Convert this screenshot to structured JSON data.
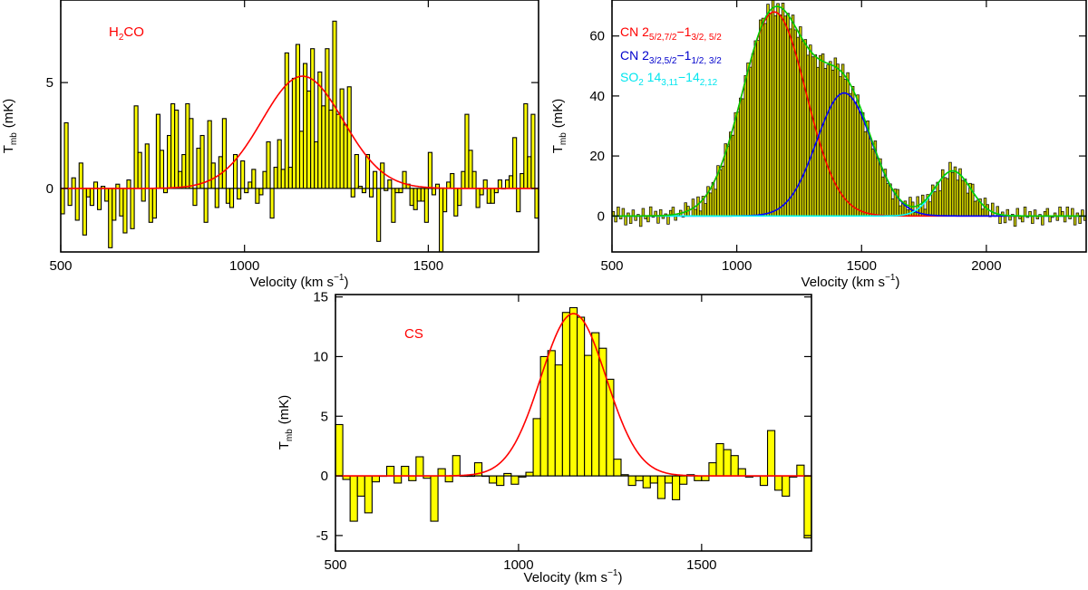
{
  "chart_data": [
    {
      "id": "h2co",
      "type": "bar",
      "title": "",
      "label": "H2CO",
      "label_parts": {
        "main": "H",
        "sub": "2",
        "rest": "CO"
      },
      "xlabel": "Velocity  (km s",
      "xlabel_sup": "−1",
      "xlabel_close": ")",
      "ylabel": "T",
      "ylabel_sub": "mb",
      "ylabel_unit": "(mK)",
      "xlim": [
        500,
        1800
      ],
      "ylim": [
        -3,
        8.9
      ],
      "xticks": [
        500,
        1000,
        1500
      ],
      "yticks": [
        0,
        5
      ],
      "bin_start": 500,
      "bin_width": 10,
      "values": [
        -1.2,
        3.1,
        -0.8,
        0.5,
        -1.5,
        1.2,
        -2.2,
        -0.4,
        -0.8,
        0.3,
        -1.0,
        0.1,
        -0.6,
        -2.8,
        -1.5,
        0.2,
        -1.3,
        -2.1,
        0.4,
        -1.9,
        3.9,
        1.7,
        -0.6,
        2.1,
        -1.6,
        -1.4,
        3.5,
        1.8,
        -0.2,
        2.5,
        4.0,
        3.7,
        0.8,
        1.6,
        4.0,
        3.3,
        -0.8,
        1.9,
        2.5,
        -1.6,
        3.2,
        1.2,
        -0.9,
        1.5,
        3.3,
        -0.7,
        -0.9,
        1.6,
        -0.5,
        1.3,
        -0.2,
        0.3,
        0.9,
        -0.7,
        -0.3,
        0.8,
        2.2,
        -1.4,
        1.0,
        2.3,
        0.9,
        6.4,
        1.0,
        5.2,
        6.8,
        2.7,
        5.9,
        4.6,
        6.6,
        2.2,
        5.5,
        3.9,
        6.6,
        3.7,
        7.9,
        3.5,
        4.7,
        3.0,
        4.8,
        -0.4,
        1.6,
        0.1,
        -0.2,
        1.6,
        -0.4,
        0.8,
        -2.5,
        1.2,
        -0.1,
        0.4,
        -1.6,
        -0.2,
        -0.2,
        0.8,
        0.2,
        -0.8,
        -1.0,
        -0.6,
        -0.6,
        -1.6,
        1.7,
        -0.3,
        0.2,
        -3.2,
        -1.1,
        0.3,
        0.7,
        -1.3,
        -0.8,
        0.8,
        3.5,
        1.8,
        0.8,
        -0.9,
        -0.3,
        0.4,
        -0.7,
        -0.7,
        -0.2,
        0.4,
        0.0,
        0.4,
        0.6,
        2.4,
        -1.1,
        0.7,
        4.0,
        1.5,
        3.5,
        -1.4
      ],
      "fits": [
        {
          "name": "Gaussian fit",
          "color": "#ff0000",
          "amplitude": 5.3,
          "center": 1158,
          "fwhm": 260
        }
      ],
      "label_color": "#ff0000"
    },
    {
      "id": "cn",
      "type": "bar",
      "title": "",
      "xlabel": "Velocity  (km s",
      "xlabel_sup": "−1",
      "xlabel_close": ")",
      "ylabel": "T",
      "ylabel_sub": "mb",
      "ylabel_unit": "(mK)",
      "xlim": [
        500,
        2400
      ],
      "ylim": [
        -12,
        72
      ],
      "xticks": [
        500,
        1000,
        1500,
        2000
      ],
      "yticks": [
        0,
        20,
        40,
        60
      ],
      "bin_start": 500,
      "bin_width": 10,
      "noise": [
        1.5,
        -2.0,
        3.0,
        -1.0,
        2.5,
        -3.0,
        1.0,
        -2.5,
        2.0,
        -1.5,
        0.5,
        -3.5,
        2.5,
        -1.0,
        -2.0,
        3.0,
        -0.5,
        1.5,
        -2.5,
        2.0,
        -1.0,
        0.5,
        -3.0,
        1.5,
        2.5,
        -2.0,
        -0.5,
        1.0,
        -1.5,
        3.0
      ],
      "fits": [
        {
          "name": "CN 2(5/2,7/2)-1(3/2,5/2)",
          "color": "#ff0000",
          "amplitude": 68,
          "center": 1150,
          "fwhm": 300
        },
        {
          "name": "CN 2(3/2,5/2)-1(1/2,3/2)",
          "color": "#0000ff",
          "amplitude": 41,
          "center": 1430,
          "fwhm": 260
        },
        {
          "name": "SO2 14(3,11)-14(2,12)",
          "color": "#00ffff",
          "amplitude": 15,
          "center": 1865,
          "fwhm": 170
        },
        {
          "name": "Total fit",
          "color": "#00cc00",
          "sum": true
        }
      ],
      "legend": [
        {
          "text": "CN  2",
          "sub": "5/2,7/2",
          "dash": "−1",
          "sub2": "3/2, 5/2",
          "color": "#ff0000"
        },
        {
          "text": "CN  2",
          "sub": "3/2,5/2",
          "dash": "−1",
          "sub2": "1/2, 3/2",
          "color": "#0000ff"
        },
        {
          "text": "SO",
          "sub": "2",
          "dash": "  14",
          "sub2": "3,11",
          "tail": "−14",
          "sub3": "2,12",
          "color": "#00ffff"
        }
      ]
    },
    {
      "id": "cs",
      "type": "bar",
      "title": "",
      "label": "CS",
      "label_color": "#ff0000",
      "xlabel": "Velocity  (km s",
      "xlabel_sup": "−1",
      "xlabel_close": ")",
      "ylabel": "T",
      "ylabel_sub": "mb",
      "ylabel_unit": "(mK)",
      "xlim": [
        500,
        1800
      ],
      "ylim": [
        -6.3,
        15.2
      ],
      "xticks": [
        500,
        1000,
        1500
      ],
      "yticks": [
        -5,
        0,
        5,
        10,
        15
      ],
      "bin_start": 500,
      "bin_width": 20,
      "values": [
        4.3,
        -0.3,
        -3.8,
        -1.7,
        -3.1,
        -0.5,
        0.0,
        0.8,
        -0.6,
        0.8,
        -0.4,
        1.6,
        -0.2,
        -3.8,
        0.6,
        -0.5,
        1.7,
        0.0,
        0.0,
        1.1,
        0.0,
        -0.6,
        -0.8,
        0.2,
        -0.7,
        -0.1,
        0.3,
        4.8,
        10.0,
        10.5,
        9.3,
        13.7,
        14.1,
        13.3,
        10.1,
        12.0,
        10.7,
        8.1,
        1.4,
        0.1,
        -0.8,
        -0.4,
        -1.0,
        -0.6,
        -1.9,
        -0.6,
        -2.0,
        -0.7,
        0.1,
        -0.4,
        -0.4,
        1.1,
        2.7,
        2.2,
        1.7,
        0.6,
        -0.1,
        0.0,
        -0.8,
        3.8,
        -1.2,
        -1.7,
        -0.1,
        0.9,
        -5.2,
        -2.1
      ],
      "fits": [
        {
          "name": "Gaussian fit",
          "color": "#ff0000",
          "amplitude": 13.6,
          "center": 1150,
          "fwhm": 210
        }
      ]
    }
  ]
}
